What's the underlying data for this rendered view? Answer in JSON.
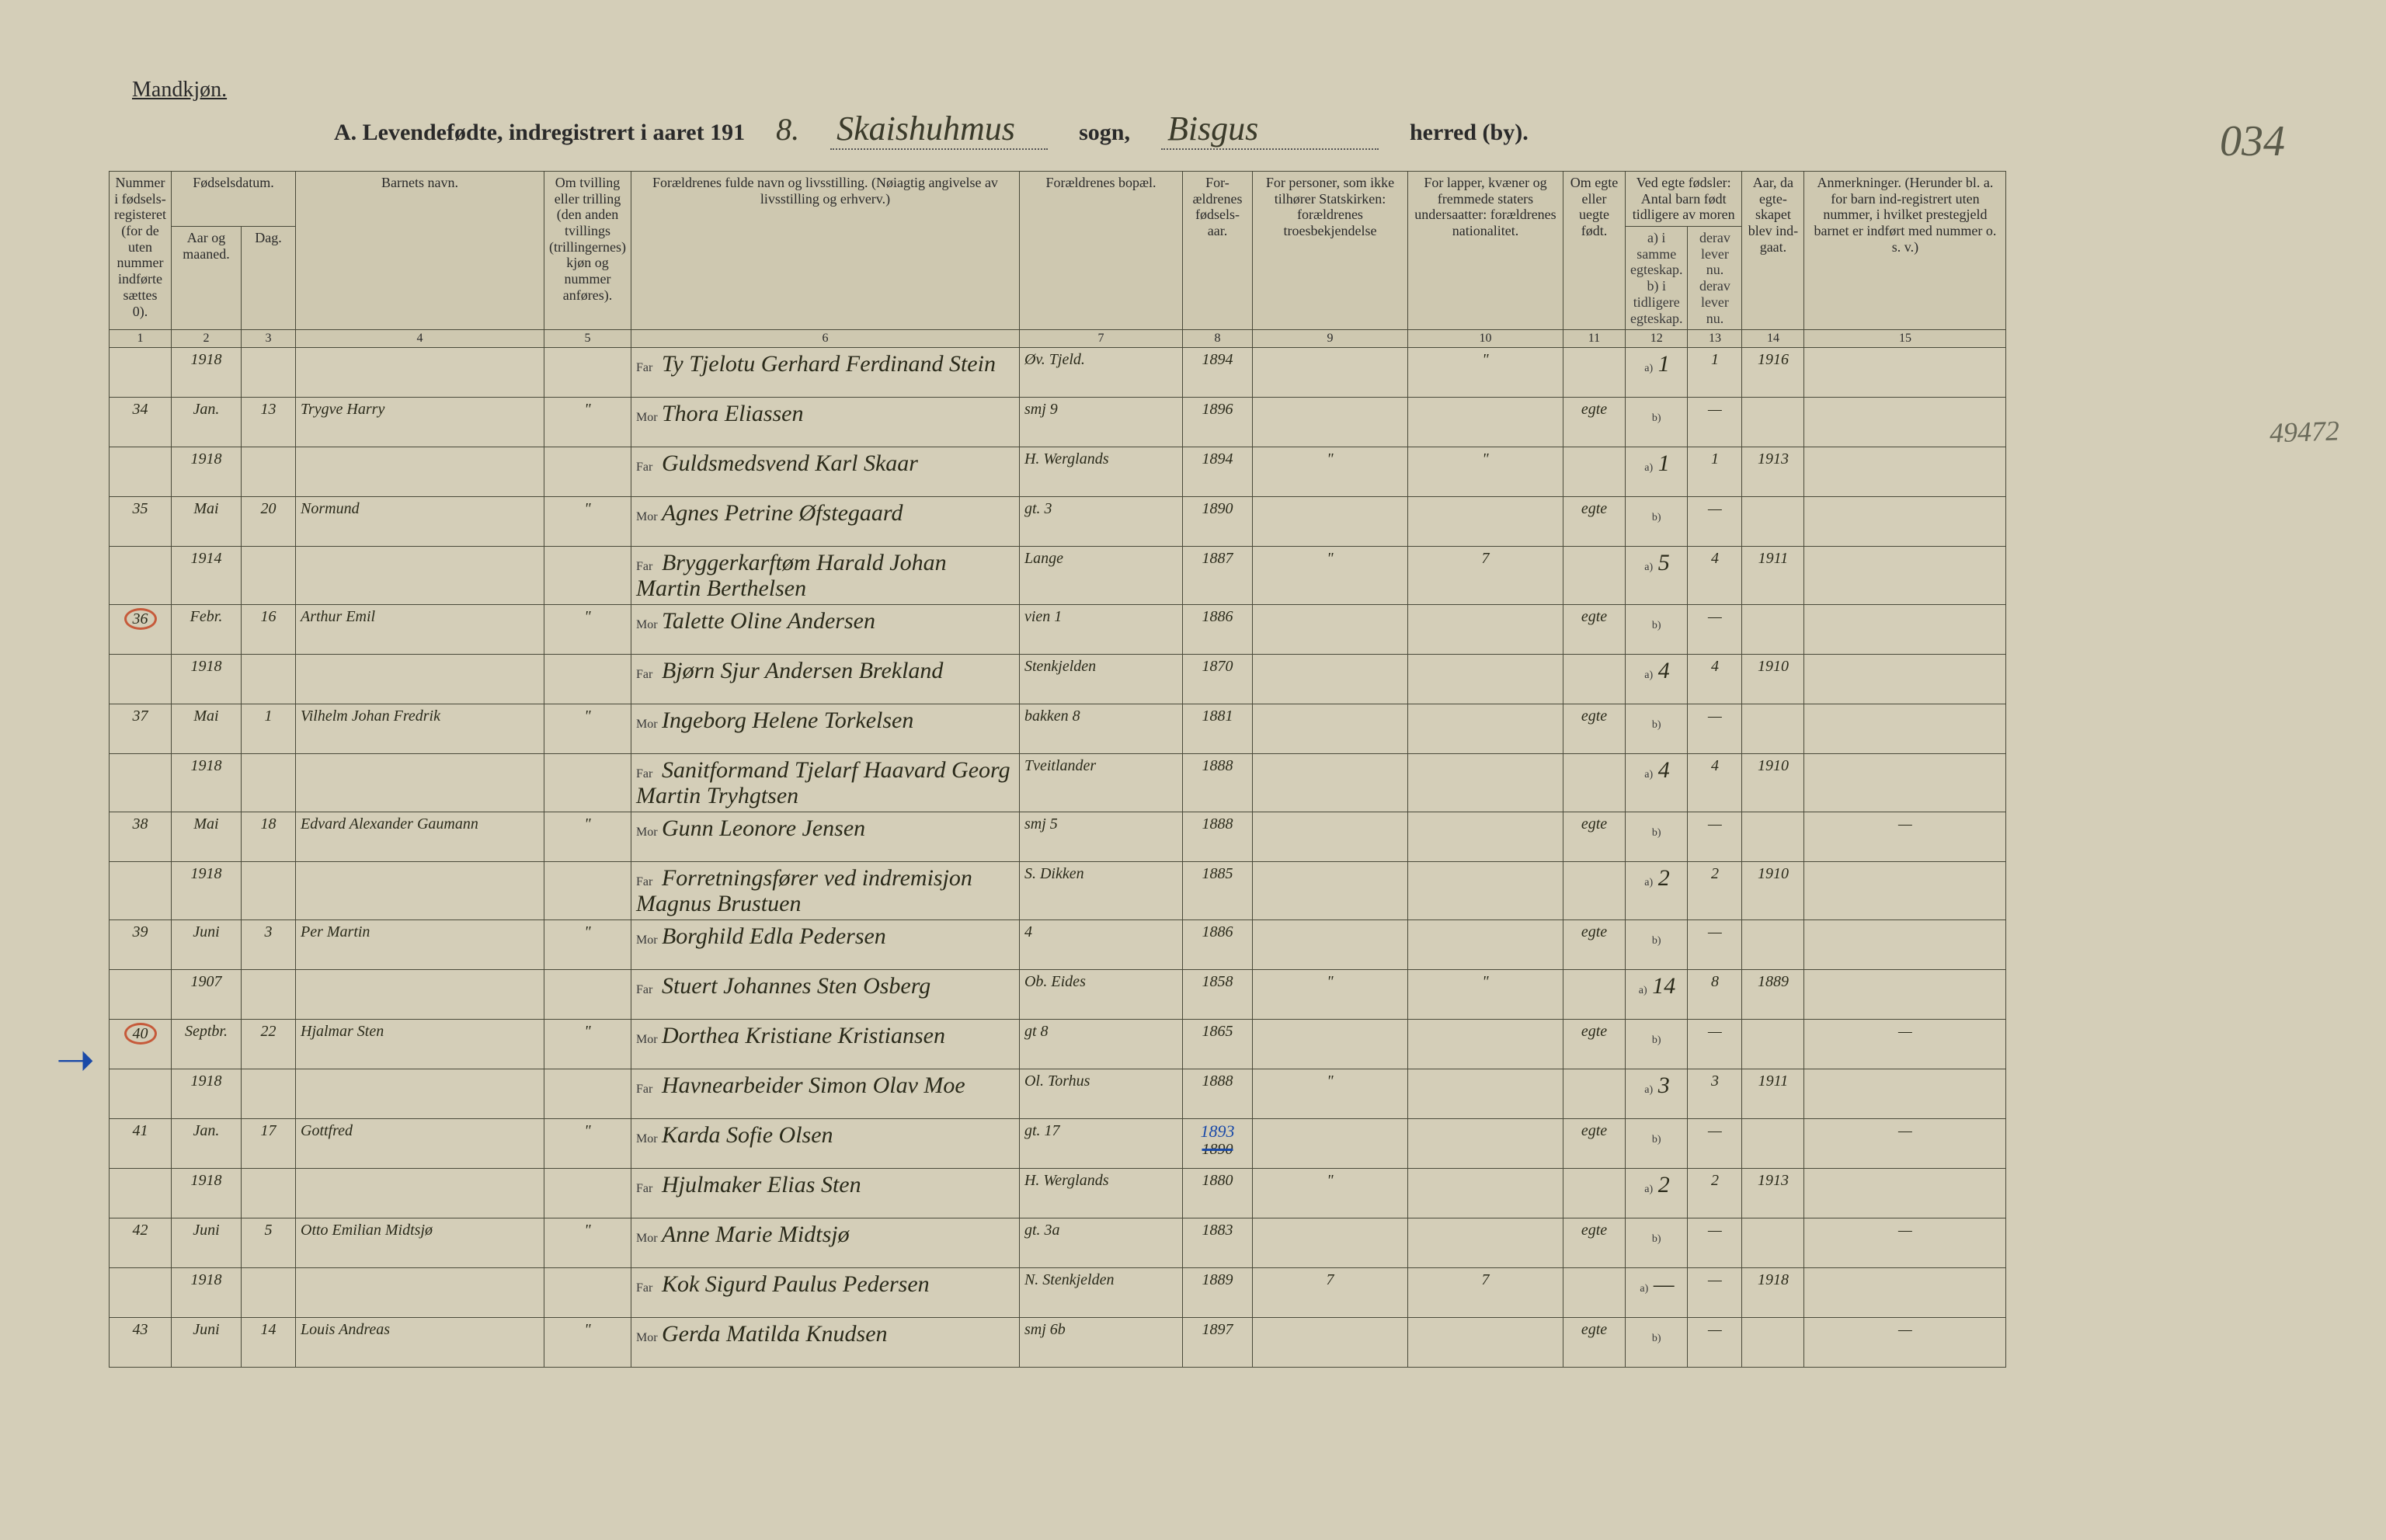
{
  "page": {
    "gender_label": "Mandkjøn.",
    "title_prefix": "A.  Levendefødte, indregistrert i aaret 191",
    "year_digit": "8.",
    "sogn_value": "Skaishuhmus",
    "sogn_label": "sogn,",
    "herred_value": "Bisgus",
    "herred_label": "herred (by).",
    "page_number": "034",
    "margin_note": "49472"
  },
  "headers": {
    "c1": "Nummer i fødsels-registeret (for de uten nummer indførte sættes 0).",
    "c2_top": "Fødselsdatum.",
    "c2a": "Aar og maaned.",
    "c2b": "Dag.",
    "c4": "Barnets navn.",
    "c5": "Om tvilling eller trilling (den anden tvillings (trillingernes) kjøn og nummer anføres).",
    "c6": "Forældrenes fulde navn og livsstilling. (Nøiagtig angivelse av livsstilling og erhverv.)",
    "c7": "Forældrenes bopæl.",
    "c8": "For-ældrenes fødsels-aar.",
    "c9": "For personer, som ikke tilhører Statskirken: forældrenes troesbekjendelse",
    "c10": "For lapper, kvæner og fremmede staters undersaatter: forældrenes nationalitet.",
    "c11": "Om egte eller uegte født.",
    "c12_top": "Ved egte fødsler: Antal barn født tidligere av moren",
    "c12a": "a) i samme egteskap.",
    "c12b": "b) i tidligere egteskap.",
    "c13a": "derav lever nu.",
    "c13b": "derav lever nu.",
    "c14": "Aar, da egte-skapet blev ind-gaat.",
    "c15": "Anmerkninger. (Herunder bl. a. for barn ind-registrert uten nummer, i hvilket prestegjeld barnet er indført med nummer o. s. v.)"
  },
  "colnums": [
    "1",
    "2",
    "3",
    "4",
    "5",
    "6",
    "7",
    "8",
    "9",
    "10",
    "11",
    "12",
    "13",
    "14",
    "15"
  ],
  "far_label": "Far",
  "mor_label": "Mor",
  "a_label": "a)",
  "b_label": "b)",
  "ditto": "\"",
  "dash": "—",
  "entries": [
    {
      "num": "34",
      "year": "1918",
      "month": "Jan.",
      "day": "13",
      "child": "Trygve Harry",
      "twin": "\"",
      "father_name": "Ty Tjelotu Gerhard Ferdinand Stein",
      "mother_name": "Thora Eliassen",
      "residence_f": "Øv. Tjeld.",
      "residence_m": "smj 9",
      "pyear_f": "1894",
      "pyear_m": "1896",
      "rel": "",
      "nat": "\"",
      "leg": "egte",
      "count_a": "1",
      "count_b": "",
      "alive": "1",
      "myear": "1916",
      "remarks": ""
    },
    {
      "num": "35",
      "year": "1918",
      "month": "Mai",
      "day": "20",
      "child": "Normund",
      "twin": "\"",
      "father_name": "Guldsmedsvend Karl Skaar",
      "mother_name": "Agnes Petrine Øfstegaard",
      "residence_f": "H. Werglands",
      "residence_m": "gt. 3",
      "pyear_f": "1894",
      "pyear_m": "1890",
      "rel": "\"",
      "nat": "\"",
      "leg": "egte",
      "count_a": "1",
      "count_b": "",
      "alive": "1",
      "myear": "1913",
      "remarks": ""
    },
    {
      "num": "36",
      "num_circled": true,
      "year": "1914",
      "month": "Febr.",
      "day": "16",
      "child": "Arthur Emil",
      "twin": "\"",
      "father_name": "Bryggerkarftøm Harald Johan Martin Berthelsen",
      "mother_name": "Talette Oline Andersen",
      "residence_f": "Lange",
      "residence_m": "vien 1",
      "pyear_f": "1887",
      "pyear_m": "1886",
      "rel": "\"",
      "nat": "7",
      "leg": "egte",
      "count_a": "5",
      "count_b": "",
      "alive": "4",
      "myear": "1911",
      "remarks": ""
    },
    {
      "num": "37",
      "year": "1918",
      "month": "Mai",
      "day": "1",
      "child": "Vilhelm Johan Fredrik",
      "twin": "\"",
      "father_name": "Bjørn Sjur Andersen Brekland",
      "mother_name": "Ingeborg Helene Torkelsen",
      "residence_f": "Stenkjelden",
      "residence_m": "bakken 8",
      "pyear_f": "1870",
      "pyear_m": "1881",
      "rel": "",
      "nat": "",
      "leg": "egte",
      "count_a": "4",
      "count_b": "",
      "alive": "4",
      "myear": "1910",
      "remarks": ""
    },
    {
      "num": "38",
      "year": "1918",
      "month": "Mai",
      "day": "18",
      "child": "Edvard Alexander Gaumann",
      "twin": "\"",
      "father_name": "Sanitformand Tjelarf Haavard Georg Martin Tryhgtsen",
      "mother_name": "Gunn Leonore Jensen",
      "residence_f": "Tveitlander",
      "residence_m": "smj 5",
      "pyear_f": "1888",
      "pyear_m": "1888",
      "rel": "",
      "nat": "",
      "leg": "egte",
      "count_a": "4",
      "count_b": "",
      "alive": "4",
      "myear": "1910",
      "remarks": "—"
    },
    {
      "num": "39",
      "year": "1918",
      "month": "Juni",
      "day": "3",
      "child": "Per Martin",
      "twin": "\"",
      "father_name": "Forretningsfører ved indremisjon Magnus Brustuen",
      "mother_name": "Borghild Edla Pedersen",
      "residence_f": "S. Dikken",
      "residence_m": "4",
      "pyear_f": "1885",
      "pyear_m": "1886",
      "rel": "",
      "nat": "",
      "leg": "egte",
      "count_a": "2",
      "count_b": "",
      "alive": "2",
      "myear": "1910",
      "remarks": ""
    },
    {
      "num": "40",
      "num_circled": true,
      "year": "1907",
      "month": "Septbr.",
      "day": "22",
      "child": "Hjalmar Sten",
      "twin": "\"",
      "father_name": "Stuert Johannes Sten Osberg",
      "mother_name": "Dorthea Kristiane Kristiansen",
      "residence_f": "Ob. Eides",
      "residence_m": "gt 8",
      "pyear_f": "1858",
      "pyear_m": "1865",
      "rel": "\"",
      "nat": "\"",
      "leg": "egte",
      "count_a": "14",
      "count_b": "",
      "alive": "8",
      "myear": "1889",
      "remarks": "—"
    },
    {
      "num": "41",
      "year": "1918",
      "month": "Jan.",
      "day": "17",
      "child": "Gottfred",
      "twin": "\"",
      "father_name": "Havnearbeider Simon Olav Moe",
      "mother_name": "Karda Sofie Olsen",
      "residence_f": "Ol. Torhus",
      "residence_m": "gt. 17",
      "pyear_f": "1888",
      "pyear_m_struck": "1890",
      "pyear_m_corr": "1893",
      "rel": "\"",
      "nat": "",
      "leg": "egte",
      "count_a": "3",
      "count_b": "",
      "alive": "3",
      "myear": "1911",
      "remarks": "—"
    },
    {
      "num": "42",
      "year": "1918",
      "month": "Juni",
      "day": "5",
      "child": "Otto Emilian Midtsjø",
      "twin": "\"",
      "father_name": "Hjulmaker Elias Sten",
      "mother_name": "Anne Marie Midtsjø",
      "residence_f": "H. Werglands",
      "residence_m": "gt. 3a",
      "pyear_f": "1880",
      "pyear_m": "1883",
      "rel": "\"",
      "nat": "",
      "leg": "egte",
      "count_a": "2",
      "count_b": "",
      "alive": "2",
      "myear": "1913",
      "remarks": "—"
    },
    {
      "num": "43",
      "year": "1918",
      "month": "Juni",
      "day": "14",
      "child": "Louis Andreas",
      "twin": "\"",
      "father_name": "Kok Sigurd Paulus Pedersen",
      "mother_name": "Gerda Matilda Knudsen",
      "residence_f": "N. Stenkjelden",
      "residence_m": "smj 6b",
      "pyear_f": "1889",
      "pyear_m": "1897",
      "rel": "7",
      "nat": "7",
      "leg": "egte",
      "count_a": "—",
      "count_b": "",
      "alive": "—",
      "myear": "1918",
      "remarks": "—"
    }
  ]
}
